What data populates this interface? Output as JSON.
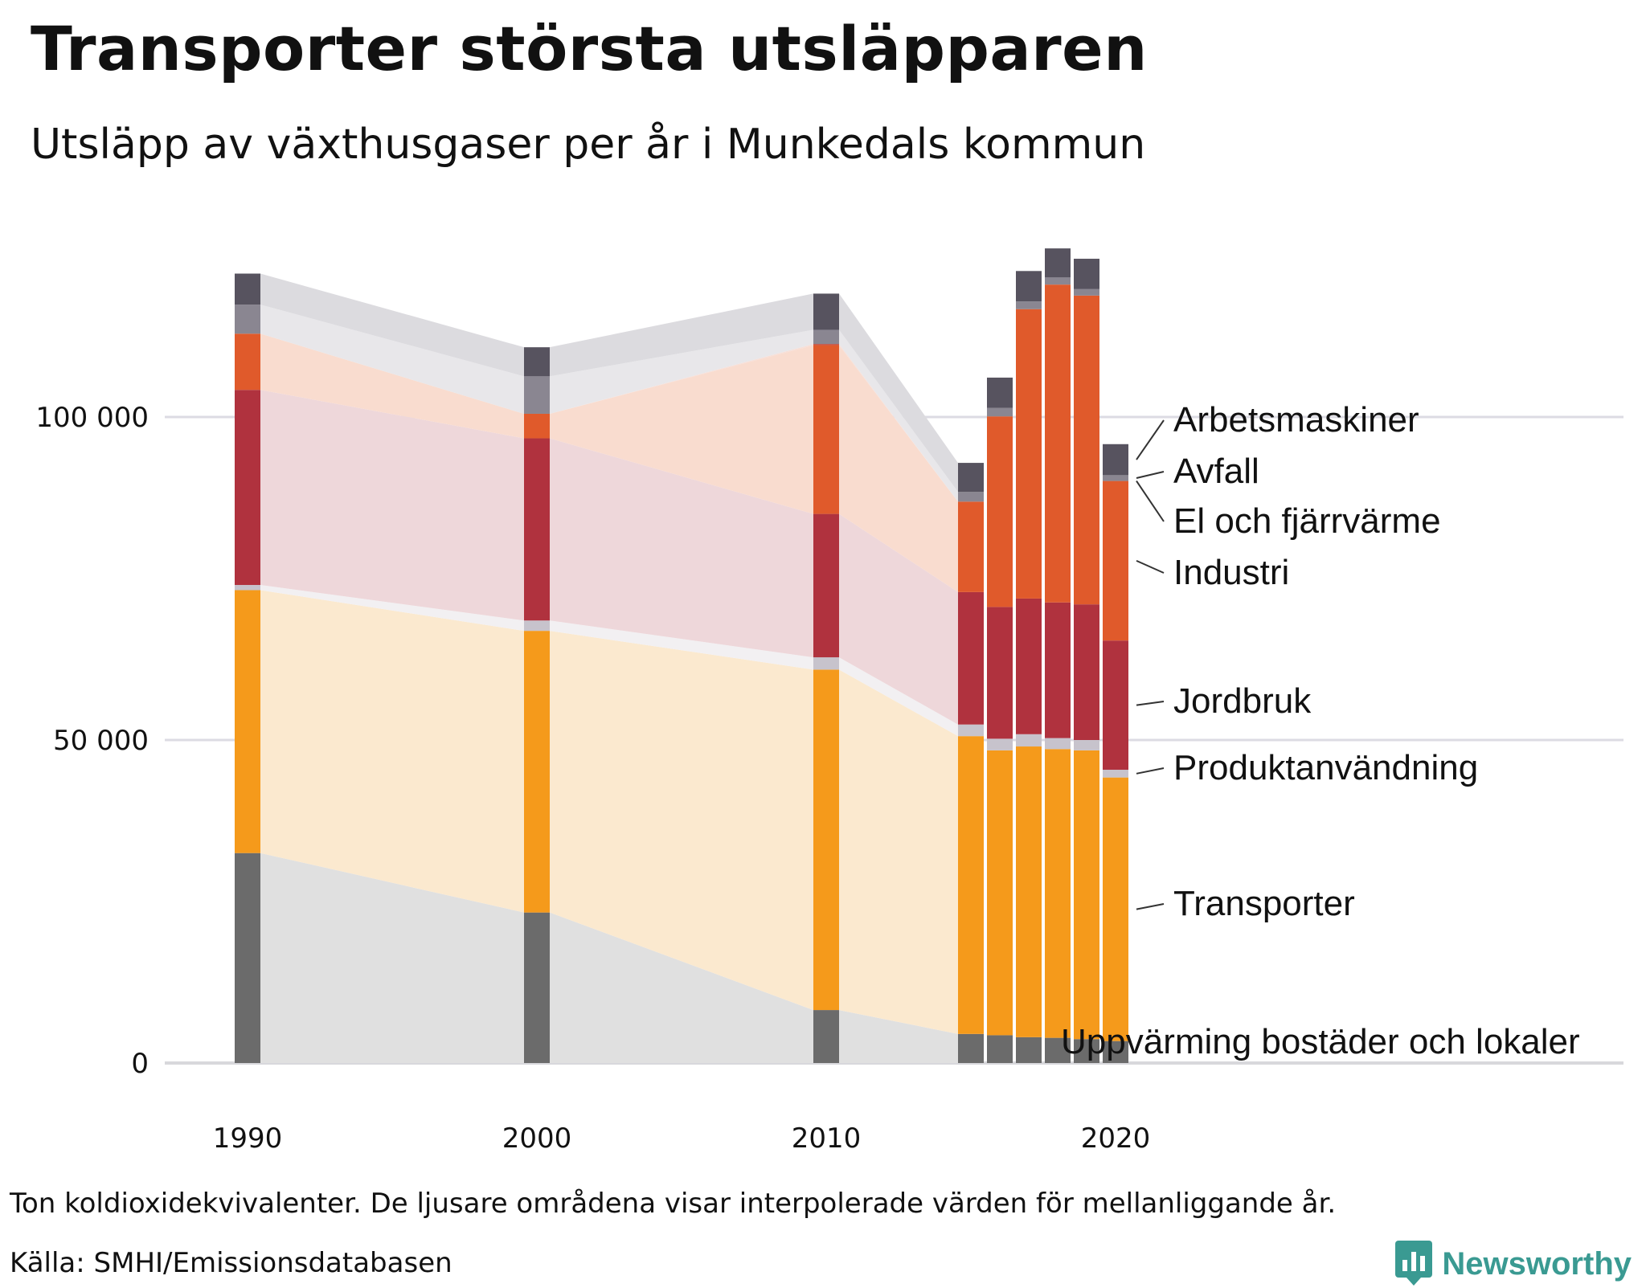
{
  "title": "Transporter största utsläpparen",
  "subtitle": "Utsläpp av växthusgaser per år i Munkedals kommun",
  "note": "Ton koldioxidekvivalenter. De ljusare områdena visar interpolerade värden för mellanliggande år.",
  "source": "Källa: SMHI/Emissionsdatabasen",
  "brand": {
    "name": "Newsworthy",
    "icon": "newsworthy-logo-icon",
    "color": "#3a9a92"
  },
  "chart_data": {
    "type": "bar",
    "stacked": true,
    "x": [
      1990,
      2000,
      2010,
      2015,
      2016,
      2017,
      2018,
      2019,
      2020
    ],
    "x_ticks": [
      "1990",
      "2000",
      "2010",
      "2020"
    ],
    "y_ticks": [
      "0",
      "50 000",
      "100 000"
    ],
    "y_tick_values": [
      0,
      50000,
      100000
    ],
    "ylim": [
      0,
      130000
    ],
    "grid": true,
    "series": [
      {
        "name": "Uppvärming bostäder och lokaler",
        "color": "#6b6b6b",
        "area_color": "#e0e0e0",
        "values": [
          32500,
          23300,
          8200,
          4500,
          4300,
          4000,
          3900,
          3700,
          3400
        ]
      },
      {
        "name": "Transporter",
        "color": "#f59a1b",
        "area_color": "#fbe9cf",
        "values": [
          40700,
          43600,
          52700,
          46100,
          44100,
          45000,
          44700,
          44700,
          40800
        ]
      },
      {
        "name": "Produktanvändning",
        "color": "#c7c3cc",
        "area_color": "#f2f0f2",
        "values": [
          800,
          1600,
          1900,
          1800,
          1800,
          1900,
          1700,
          1600,
          1200
        ]
      },
      {
        "name": "Jordbruk",
        "color": "#b0323e",
        "area_color": "#eed7da",
        "values": [
          30200,
          28200,
          22200,
          20500,
          20400,
          21000,
          21000,
          21000,
          20000
        ]
      },
      {
        "name": "Industri",
        "color": "#e05a2b",
        "area_color": "#f9dccf",
        "values": [
          8700,
          3800,
          26100,
          14000,
          29500,
          44800,
          49200,
          47800,
          24700
        ]
      },
      {
        "name": "El och fjärrvärme",
        "color": "#c6432d",
        "area_color": "#f6dfd8",
        "values": [
          0,
          0,
          200,
          0,
          0,
          0,
          0,
          0,
          0
        ]
      },
      {
        "name": "Avfall",
        "color": "#8a8691",
        "area_color": "#e8e7ea",
        "values": [
          4500,
          5800,
          2200,
          1500,
          1300,
          1200,
          1100,
          1000,
          900
        ]
      },
      {
        "name": "Arbetsmaskiner",
        "color": "#57535f",
        "area_color": "#dcdbdf",
        "values": [
          4800,
          4500,
          5600,
          4500,
          4700,
          4700,
          4500,
          4700,
          4800
        ]
      }
    ],
    "labels_order_top_to_bottom": [
      "Arbetsmaskiner",
      "Avfall",
      "El och fjärrvärme",
      "Industri",
      "Jordbruk",
      "Produktanvändning",
      "Transporter",
      "Uppvärming bostäder och lokaler"
    ]
  }
}
